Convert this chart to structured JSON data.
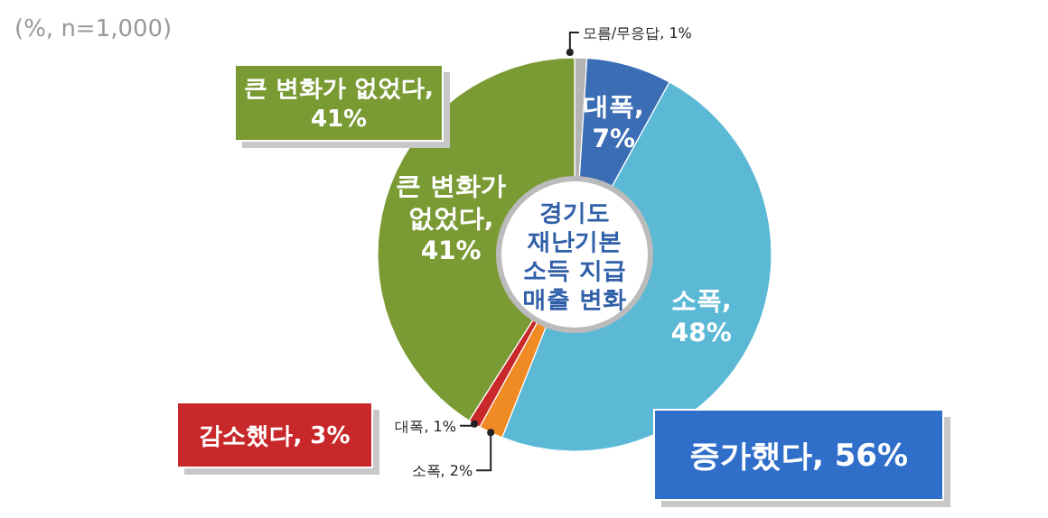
{
  "chart_data": {
    "type": "donut",
    "title": "경기도 재난기본 소득 지급 매출 변화",
    "subtitle": "(%, n=1,000)",
    "categories": [
      "모름/무응답",
      "대폭",
      "소폭",
      "소폭",
      "대폭",
      "큰 변화가 없었다"
    ],
    "values": [
      1,
      7,
      48,
      2,
      1,
      41
    ],
    "colors": [
      "#b4b4b4",
      "#3b6db5",
      "#5cb9d6",
      "#f08a24",
      "#c8282a",
      "#7a9a34"
    ],
    "value_labels": [
      ", 1%",
      ", 7%",
      ", 48%",
      ", 2%",
      ", 1%",
      ", 41%"
    ],
    "annotations": [
      "큰 변화가 없었다, 41%",
      "감소했다, 3%",
      "증가했다, 56%"
    ]
  }
}
